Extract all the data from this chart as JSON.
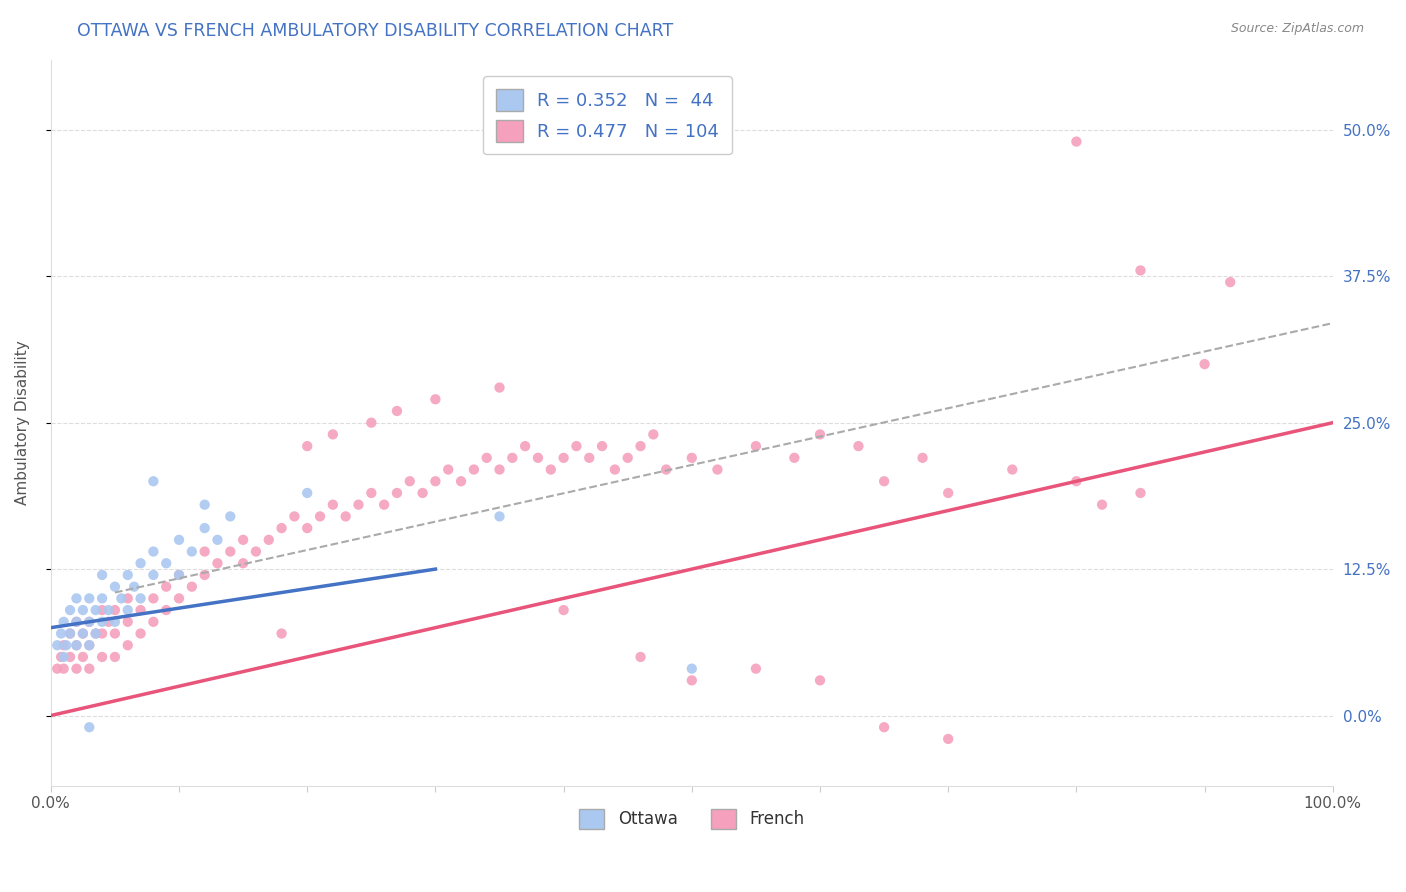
{
  "title": "OTTAWA VS FRENCH AMBULATORY DISABILITY CORRELATION CHART",
  "source": "Source: ZipAtlas.com",
  "ylabel": "Ambulatory Disability",
  "ottawa_color": "#aac8f0",
  "french_color": "#f5a0bc",
  "ottawa_line_color": "#4472c4",
  "french_line_color": "#e8547a",
  "dash_line_color": "#aaaaaa",
  "r_ottawa": 0.352,
  "n_ottawa": 44,
  "r_french": 0.477,
  "n_french": 104,
  "title_color": "#4472c4",
  "tick_color_right": "#4472c4",
  "source_color": "#888888",
  "ylabel_color": "#555555",
  "xtick_color": "#555555",
  "grid_color": "#dddddd",
  "xlim": [
    0.0,
    1.0
  ],
  "ylim": [
    -0.06,
    0.56
  ],
  "ottawa_line_x": [
    0.0,
    0.3
  ],
  "ottawa_line_y": [
    0.075,
    0.125
  ],
  "french_line_x": [
    0.0,
    1.0
  ],
  "french_line_y": [
    0.0,
    0.25
  ],
  "dash_line_x": [
    0.05,
    1.0
  ],
  "dash_line_y": [
    0.105,
    0.335
  ],
  "ottawa_pts_x": [
    0.005,
    0.008,
    0.01,
    0.01,
    0.012,
    0.015,
    0.015,
    0.02,
    0.02,
    0.02,
    0.025,
    0.025,
    0.03,
    0.03,
    0.03,
    0.035,
    0.035,
    0.04,
    0.04,
    0.04,
    0.045,
    0.05,
    0.05,
    0.055,
    0.06,
    0.06,
    0.065,
    0.07,
    0.07,
    0.08,
    0.08,
    0.09,
    0.1,
    0.1,
    0.11,
    0.12,
    0.13,
    0.14,
    0.08,
    0.35,
    0.5,
    0.12,
    0.2,
    0.03
  ],
  "ottawa_pts_y": [
    0.06,
    0.07,
    0.05,
    0.08,
    0.06,
    0.07,
    0.09,
    0.06,
    0.08,
    0.1,
    0.07,
    0.09,
    0.06,
    0.08,
    0.1,
    0.07,
    0.09,
    0.08,
    0.1,
    0.12,
    0.09,
    0.08,
    0.11,
    0.1,
    0.09,
    0.12,
    0.11,
    0.1,
    0.13,
    0.12,
    0.14,
    0.13,
    0.12,
    0.15,
    0.14,
    0.16,
    0.15,
    0.17,
    0.2,
    0.17,
    0.04,
    0.18,
    0.19,
    -0.01
  ],
  "french_pts_x": [
    0.005,
    0.008,
    0.01,
    0.01,
    0.015,
    0.015,
    0.02,
    0.02,
    0.02,
    0.025,
    0.025,
    0.03,
    0.03,
    0.03,
    0.035,
    0.04,
    0.04,
    0.04,
    0.045,
    0.05,
    0.05,
    0.05,
    0.06,
    0.06,
    0.06,
    0.07,
    0.07,
    0.08,
    0.08,
    0.09,
    0.09,
    0.1,
    0.1,
    0.11,
    0.12,
    0.12,
    0.13,
    0.14,
    0.15,
    0.15,
    0.16,
    0.17,
    0.18,
    0.19,
    0.2,
    0.21,
    0.22,
    0.23,
    0.24,
    0.25,
    0.26,
    0.27,
    0.28,
    0.29,
    0.3,
    0.31,
    0.32,
    0.33,
    0.34,
    0.35,
    0.36,
    0.37,
    0.38,
    0.39,
    0.4,
    0.41,
    0.42,
    0.43,
    0.44,
    0.45,
    0.46,
    0.47,
    0.48,
    0.5,
    0.52,
    0.55,
    0.58,
    0.6,
    0.63,
    0.65,
    0.68,
    0.7,
    0.75,
    0.8,
    0.82,
    0.85,
    0.4,
    0.46,
    0.5,
    0.55,
    0.6,
    0.65,
    0.7,
    0.8,
    0.85,
    0.9,
    0.92,
    0.3,
    0.35,
    0.27,
    0.25,
    0.22,
    0.2,
    0.18
  ],
  "french_pts_y": [
    0.04,
    0.05,
    0.04,
    0.06,
    0.05,
    0.07,
    0.04,
    0.06,
    0.08,
    0.05,
    0.07,
    0.04,
    0.06,
    0.08,
    0.07,
    0.05,
    0.07,
    0.09,
    0.08,
    0.05,
    0.07,
    0.09,
    0.06,
    0.08,
    0.1,
    0.07,
    0.09,
    0.08,
    0.1,
    0.09,
    0.11,
    0.1,
    0.12,
    0.11,
    0.12,
    0.14,
    0.13,
    0.14,
    0.15,
    0.13,
    0.14,
    0.15,
    0.16,
    0.17,
    0.16,
    0.17,
    0.18,
    0.17,
    0.18,
    0.19,
    0.18,
    0.19,
    0.2,
    0.19,
    0.2,
    0.21,
    0.2,
    0.21,
    0.22,
    0.21,
    0.22,
    0.23,
    0.22,
    0.21,
    0.22,
    0.23,
    0.22,
    0.23,
    0.21,
    0.22,
    0.23,
    0.24,
    0.21,
    0.22,
    0.21,
    0.23,
    0.22,
    0.24,
    0.23,
    0.2,
    0.22,
    0.19,
    0.21,
    0.2,
    0.18,
    0.19,
    0.09,
    0.05,
    0.03,
    0.04,
    0.03,
    -0.01,
    -0.02,
    0.49,
    0.38,
    0.3,
    0.37,
    0.27,
    0.28,
    0.26,
    0.25,
    0.24,
    0.23,
    0.07
  ]
}
